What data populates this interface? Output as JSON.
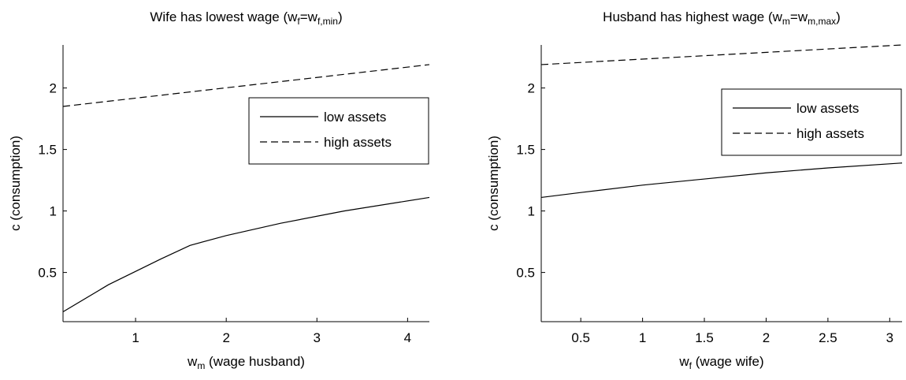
{
  "chart_data": [
    {
      "type": "line",
      "title": [
        "Wife has lowest wage (w",
        "f",
        "=w",
        "f,min",
        ")"
      ],
      "xlabel": [
        "w",
        "m",
        " (wage husband)"
      ],
      "ylabel": "c (consumption)",
      "xlim": [
        0.2,
        4.24
      ],
      "xticks": [
        1,
        2,
        3,
        4
      ],
      "ylim": [
        0.1,
        2.35
      ],
      "yticks": [
        0.5,
        1,
        1.5,
        2
      ],
      "legend": "northeast",
      "series": [
        {
          "name": "low assets",
          "color": "#000000",
          "dash": "solid",
          "x": [
            0.2,
            0.7,
            1.28,
            1.6,
            2,
            2.6,
            3.3,
            4.24
          ],
          "values": [
            0.18,
            0.4,
            0.61,
            0.72,
            0.8,
            0.9,
            1.0,
            1.11
          ]
        },
        {
          "name": "high assets",
          "color": "#000000",
          "dash": "dashed",
          "x": [
            0.2,
            4.24
          ],
          "values": [
            1.85,
            2.19
          ]
        }
      ]
    },
    {
      "type": "line",
      "title": [
        "Husband has highest wage (w",
        "m",
        "=w",
        "m,max",
        ")"
      ],
      "xlabel": [
        "w",
        "f",
        " (wage wife)"
      ],
      "ylabel": "c (consumption)",
      "xlim": [
        0.18,
        3.1
      ],
      "xticks": [
        0.5,
        1,
        1.5,
        2,
        2.5,
        3
      ],
      "ylim": [
        0.1,
        2.35
      ],
      "yticks": [
        0.5,
        1,
        1.5,
        2
      ],
      "legend": "northeast",
      "series": [
        {
          "name": "low assets",
          "color": "#000000",
          "dash": "solid",
          "x": [
            0.18,
            0.5,
            1,
            1.5,
            2,
            2.5,
            3.1
          ],
          "values": [
            1.11,
            1.15,
            1.21,
            1.26,
            1.31,
            1.35,
            1.39
          ]
        },
        {
          "name": "high assets",
          "color": "#000000",
          "dash": "dashed",
          "x": [
            0.18,
            3.1
          ],
          "values": [
            2.19,
            2.35
          ]
        }
      ]
    }
  ]
}
